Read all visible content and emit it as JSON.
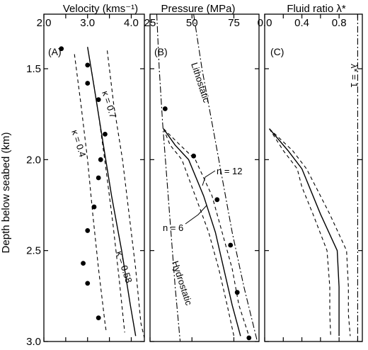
{
  "chart_data": [
    {
      "type": "line",
      "panel_label": "(A)",
      "xlabel": "Velocity (kms⁻¹)",
      "ylabel": "Depth below seabed (km)",
      "xlim": [
        2.0,
        4.3
      ],
      "ylim": [
        1.2,
        3.0
      ],
      "y_inverted": true,
      "x_ticks": [
        2.0,
        2.5,
        3.0,
        3.5,
        4.0
      ],
      "x_tick_labels": [
        "2.0",
        "",
        "3.0",
        "",
        "4.0"
      ],
      "y_ticks": [
        1.5,
        2.0,
        2.5,
        3.0
      ],
      "y_tick_labels": [
        "1.5",
        "2.0",
        "2.5",
        "3.0"
      ],
      "grid": false,
      "points": {
        "depth": [
          1.39,
          1.48,
          1.58,
          1.67,
          1.86,
          2.0,
          2.1,
          2.26,
          2.39,
          2.57,
          2.68,
          2.87
        ],
        "velocity": [
          2.4,
          3.0,
          3.0,
          3.25,
          3.4,
          3.3,
          3.25,
          3.15,
          3.0,
          2.9,
          3.0,
          3.25
        ]
      },
      "series": [
        {
          "label": "κ = 0.58",
          "style": "solid",
          "depth": [
            1.38,
            1.6,
            1.9,
            2.2,
            2.5,
            2.8,
            2.97
          ],
          "velocity": [
            3.0,
            3.15,
            3.35,
            3.55,
            3.78,
            3.98,
            4.1
          ]
        },
        {
          "label": "κ = 0.4",
          "style": "dashed",
          "depth": [
            1.42,
            1.7,
            2.0,
            2.3,
            2.6,
            2.9,
            2.95
          ],
          "velocity": [
            2.7,
            2.85,
            3.0,
            3.12,
            3.25,
            3.4,
            3.43
          ]
        },
        {
          "label": "κ = 0.7",
          "style": "dashed",
          "depth": [
            1.4,
            1.7,
            2.0,
            2.3,
            2.6,
            2.9,
            2.98
          ],
          "velocity": [
            3.45,
            3.6,
            3.8,
            3.95,
            4.1,
            4.22,
            4.3
          ]
        },
        {
          "label": "",
          "style": "dashed",
          "depth": [
            1.45,
            1.75,
            2.05,
            2.35,
            2.65,
            2.95
          ],
          "velocity": [
            3.05,
            3.25,
            3.42,
            3.58,
            3.72,
            3.85
          ]
        }
      ],
      "annotations": [
        "κ = 0.7",
        "κ = 0.4",
        "κ = 0.58"
      ]
    },
    {
      "type": "line",
      "panel_label": "(B)",
      "xlabel": "Pressure (MPa)",
      "xlim": [
        25,
        90
      ],
      "ylim": [
        1.2,
        3.0
      ],
      "y_inverted": true,
      "x_ticks": [
        25,
        50,
        75
      ],
      "x_tick_labels": [
        "25",
        "50",
        "75"
      ],
      "grid": false,
      "points": {
        "depth": [
          1.72,
          1.98,
          2.22,
          2.47,
          2.73,
          2.98
        ],
        "pressure": [
          34,
          51,
          65,
          73,
          77,
          84
        ]
      },
      "series": [
        {
          "label": "Lithostatic",
          "style": "dashdot",
          "depth": [
            1.2,
            1.5,
            1.8,
            2.1,
            2.4,
            2.7,
            3.0
          ],
          "pressure": [
            51,
            56,
            62,
            68,
            74,
            81,
            89
          ]
        },
        {
          "label": "Hydrostatic",
          "style": "dashdot",
          "depth": [
            1.2,
            1.5,
            1.8,
            2.1,
            2.4,
            2.7,
            3.0
          ],
          "pressure": [
            29,
            30.5,
            32.5,
            35,
            37.5,
            40,
            43
          ]
        },
        {
          "label": "",
          "style": "solid",
          "depth": [
            1.83,
            1.92,
            2.0,
            2.2,
            2.4,
            2.6,
            2.8,
            2.97
          ],
          "pressure": [
            33,
            40,
            48,
            57,
            64,
            69,
            74,
            79
          ]
        },
        {
          "label": "",
          "style": "dashed",
          "depth": [
            1.83,
            1.92,
            2.0,
            2.2,
            2.4,
            2.6,
            2.8,
            2.97
          ],
          "pressure": [
            33,
            37,
            44,
            52,
            60,
            66,
            71,
            75
          ]
        },
        {
          "label": "",
          "style": "dashed",
          "depth": [
            1.83,
            1.92,
            2.0,
            2.2,
            2.4,
            2.6,
            2.8,
            2.97
          ],
          "pressure": [
            33,
            43,
            52,
            62,
            68,
            74,
            78,
            84
          ]
        }
      ],
      "annotations": [
        "Lithostatic",
        "Hydrostatic",
        "n = 12",
        "n = 6"
      ]
    },
    {
      "type": "line",
      "panel_label": "(C)",
      "xlabel": "Fluid ratio λ*",
      "xlim": [
        0.0,
        1.05
      ],
      "ylim": [
        1.2,
        3.0
      ],
      "y_inverted": true,
      "x_ticks": [
        0.0,
        0.2,
        0.4,
        0.6,
        0.8,
        1.0
      ],
      "x_tick_labels": [
        "0.0",
        "",
        "0.4",
        "",
        "0.8",
        ""
      ],
      "grid": false,
      "series": [
        {
          "label": "λ* = 1",
          "style": "dashdot",
          "depth": [
            1.2,
            3.0
          ],
          "lambda": [
            1.0,
            1.0
          ]
        },
        {
          "label": "",
          "style": "solid",
          "depth": [
            1.83,
            1.95,
            2.05,
            2.15,
            2.3,
            2.5,
            2.7,
            2.85,
            2.97
          ],
          "lambda": [
            0.05,
            0.25,
            0.4,
            0.48,
            0.6,
            0.78,
            0.8,
            0.8,
            0.8
          ]
        },
        {
          "label": "",
          "style": "dashed",
          "depth": [
            1.83,
            1.95,
            2.05,
            2.15,
            2.3,
            2.5,
            2.7,
            2.85,
            2.97
          ],
          "lambda": [
            0.05,
            0.2,
            0.35,
            0.4,
            0.52,
            0.67,
            0.7,
            0.7,
            0.71
          ]
        },
        {
          "label": "",
          "style": "dashed",
          "depth": [
            1.83,
            1.95,
            2.05,
            2.15,
            2.3,
            2.5,
            2.7,
            2.85,
            2.97
          ],
          "lambda": [
            0.05,
            0.3,
            0.45,
            0.55,
            0.7,
            0.88,
            0.9,
            0.9,
            0.92
          ]
        }
      ],
      "annotations": [
        "λ* = 1"
      ]
    }
  ]
}
